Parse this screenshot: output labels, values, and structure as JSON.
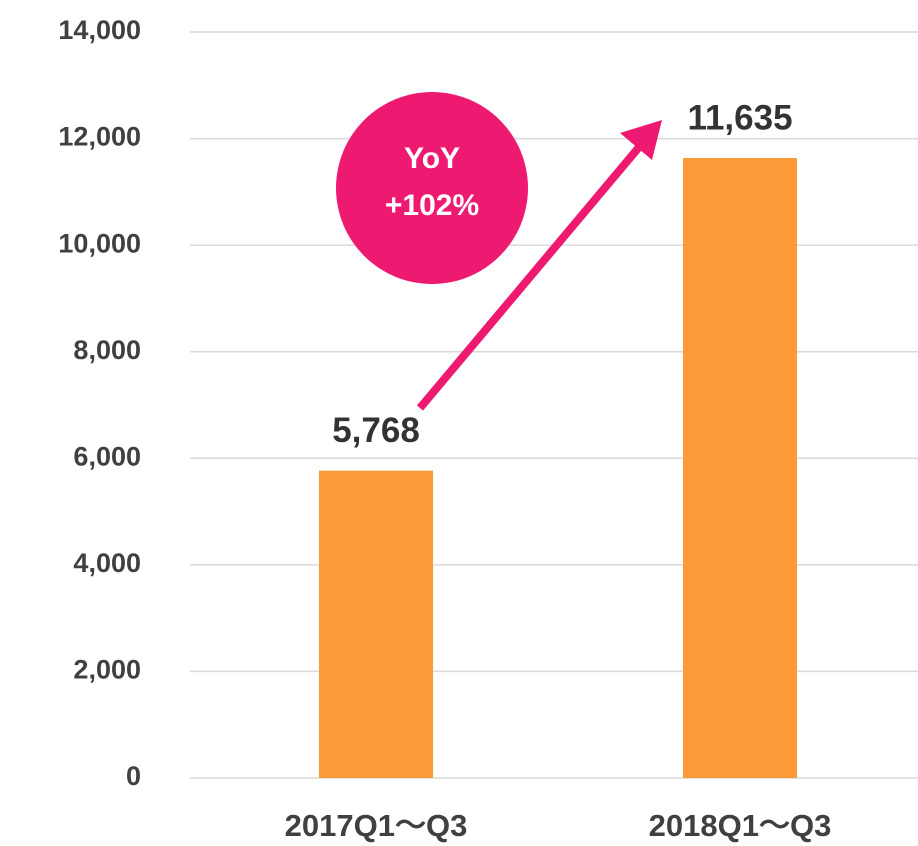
{
  "chart_data": {
    "type": "bar",
    "categories": [
      "2017Q1～Q3",
      "2018Q1～Q3"
    ],
    "values": [
      5768,
      11635
    ],
    "value_labels": [
      "5,768",
      "11,635"
    ],
    "color": "#fd9a38",
    "ylim": [
      0,
      14000
    ],
    "yticks": [
      0,
      {
        "value": 2000,
        "label": "2,000"
      },
      {
        "value": 4000,
        "label": "4,000"
      },
      {
        "value": 6000,
        "label": "6,000"
      },
      {
        "value": 8000,
        "label": "8,000"
      },
      {
        "value": 10000,
        "label": "10,000"
      },
      {
        "value": 12000,
        "label": "12,000"
      },
      {
        "value": 14000,
        "label": "14,000"
      }
    ],
    "grid": true,
    "annotations": [
      "YoY",
      "+102%"
    ],
    "annotation_color": "#ee1a72"
  }
}
